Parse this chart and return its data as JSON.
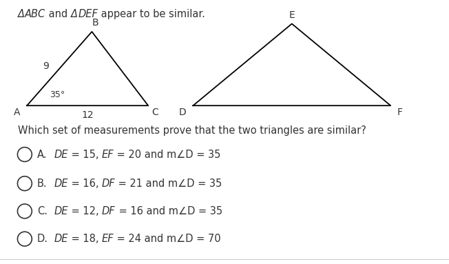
{
  "title_parts": [
    {
      "text": "Δ",
      "italic": true
    },
    {
      "text": "ABC",
      "italic": true
    },
    {
      "text": " and ",
      "italic": false
    },
    {
      "text": "Δ",
      "italic": true
    },
    {
      "text": "DEF",
      "italic": true
    },
    {
      "text": " appear to be similar.",
      "italic": false
    }
  ],
  "question_text": "Which set of measurements prove that the two triangles are similar?",
  "options": [
    {
      "letter": "A.",
      "parts": [
        {
          "text": "DE",
          "italic": true
        },
        {
          "text": " = 15, ",
          "italic": false
        },
        {
          "text": "EF",
          "italic": true
        },
        {
          "text": " = 20 and m∠D = 35",
          "italic": false
        }
      ]
    },
    {
      "letter": "B.",
      "parts": [
        {
          "text": "DE",
          "italic": true
        },
        {
          "text": " = 16, ",
          "italic": false
        },
        {
          "text": "DF",
          "italic": true
        },
        {
          "text": " = 21 and m∠D = 35",
          "italic": false
        }
      ]
    },
    {
      "letter": "C.",
      "parts": [
        {
          "text": "DE",
          "italic": true
        },
        {
          "text": " = 12, ",
          "italic": false
        },
        {
          "text": "DF",
          "italic": true
        },
        {
          "text": " = 16 and m∠D = 35",
          "italic": false
        }
      ]
    },
    {
      "letter": "D.",
      "parts": [
        {
          "text": "DE",
          "italic": true
        },
        {
          "text": " = 18, ",
          "italic": false
        },
        {
          "text": "EF",
          "italic": true
        },
        {
          "text": " = 24 and m∠D = 70",
          "italic": false
        }
      ]
    }
  ],
  "triangle1": {
    "A": [
      0.05,
      0.0
    ],
    "B": [
      0.2,
      0.26
    ],
    "C": [
      0.33,
      0.0
    ],
    "label_A": "A",
    "label_B": "B",
    "label_C": "C",
    "side_AB_label": "9",
    "side_AC_label": "12",
    "angle_A_label": "35°"
  },
  "triangle2": {
    "D": [
      0.0,
      0.0
    ],
    "E": [
      0.38,
      0.42
    ],
    "F": [
      0.76,
      0.0
    ],
    "label_D": "D",
    "label_E": "E",
    "label_F": "F"
  },
  "bg_color": "#ffffff",
  "line_color": "#000000",
  "text_color": "#333333",
  "font_size_title": 10.5,
  "font_size_question": 10.5,
  "font_size_option": 10.5,
  "font_size_label": 10,
  "font_size_measurement": 10
}
